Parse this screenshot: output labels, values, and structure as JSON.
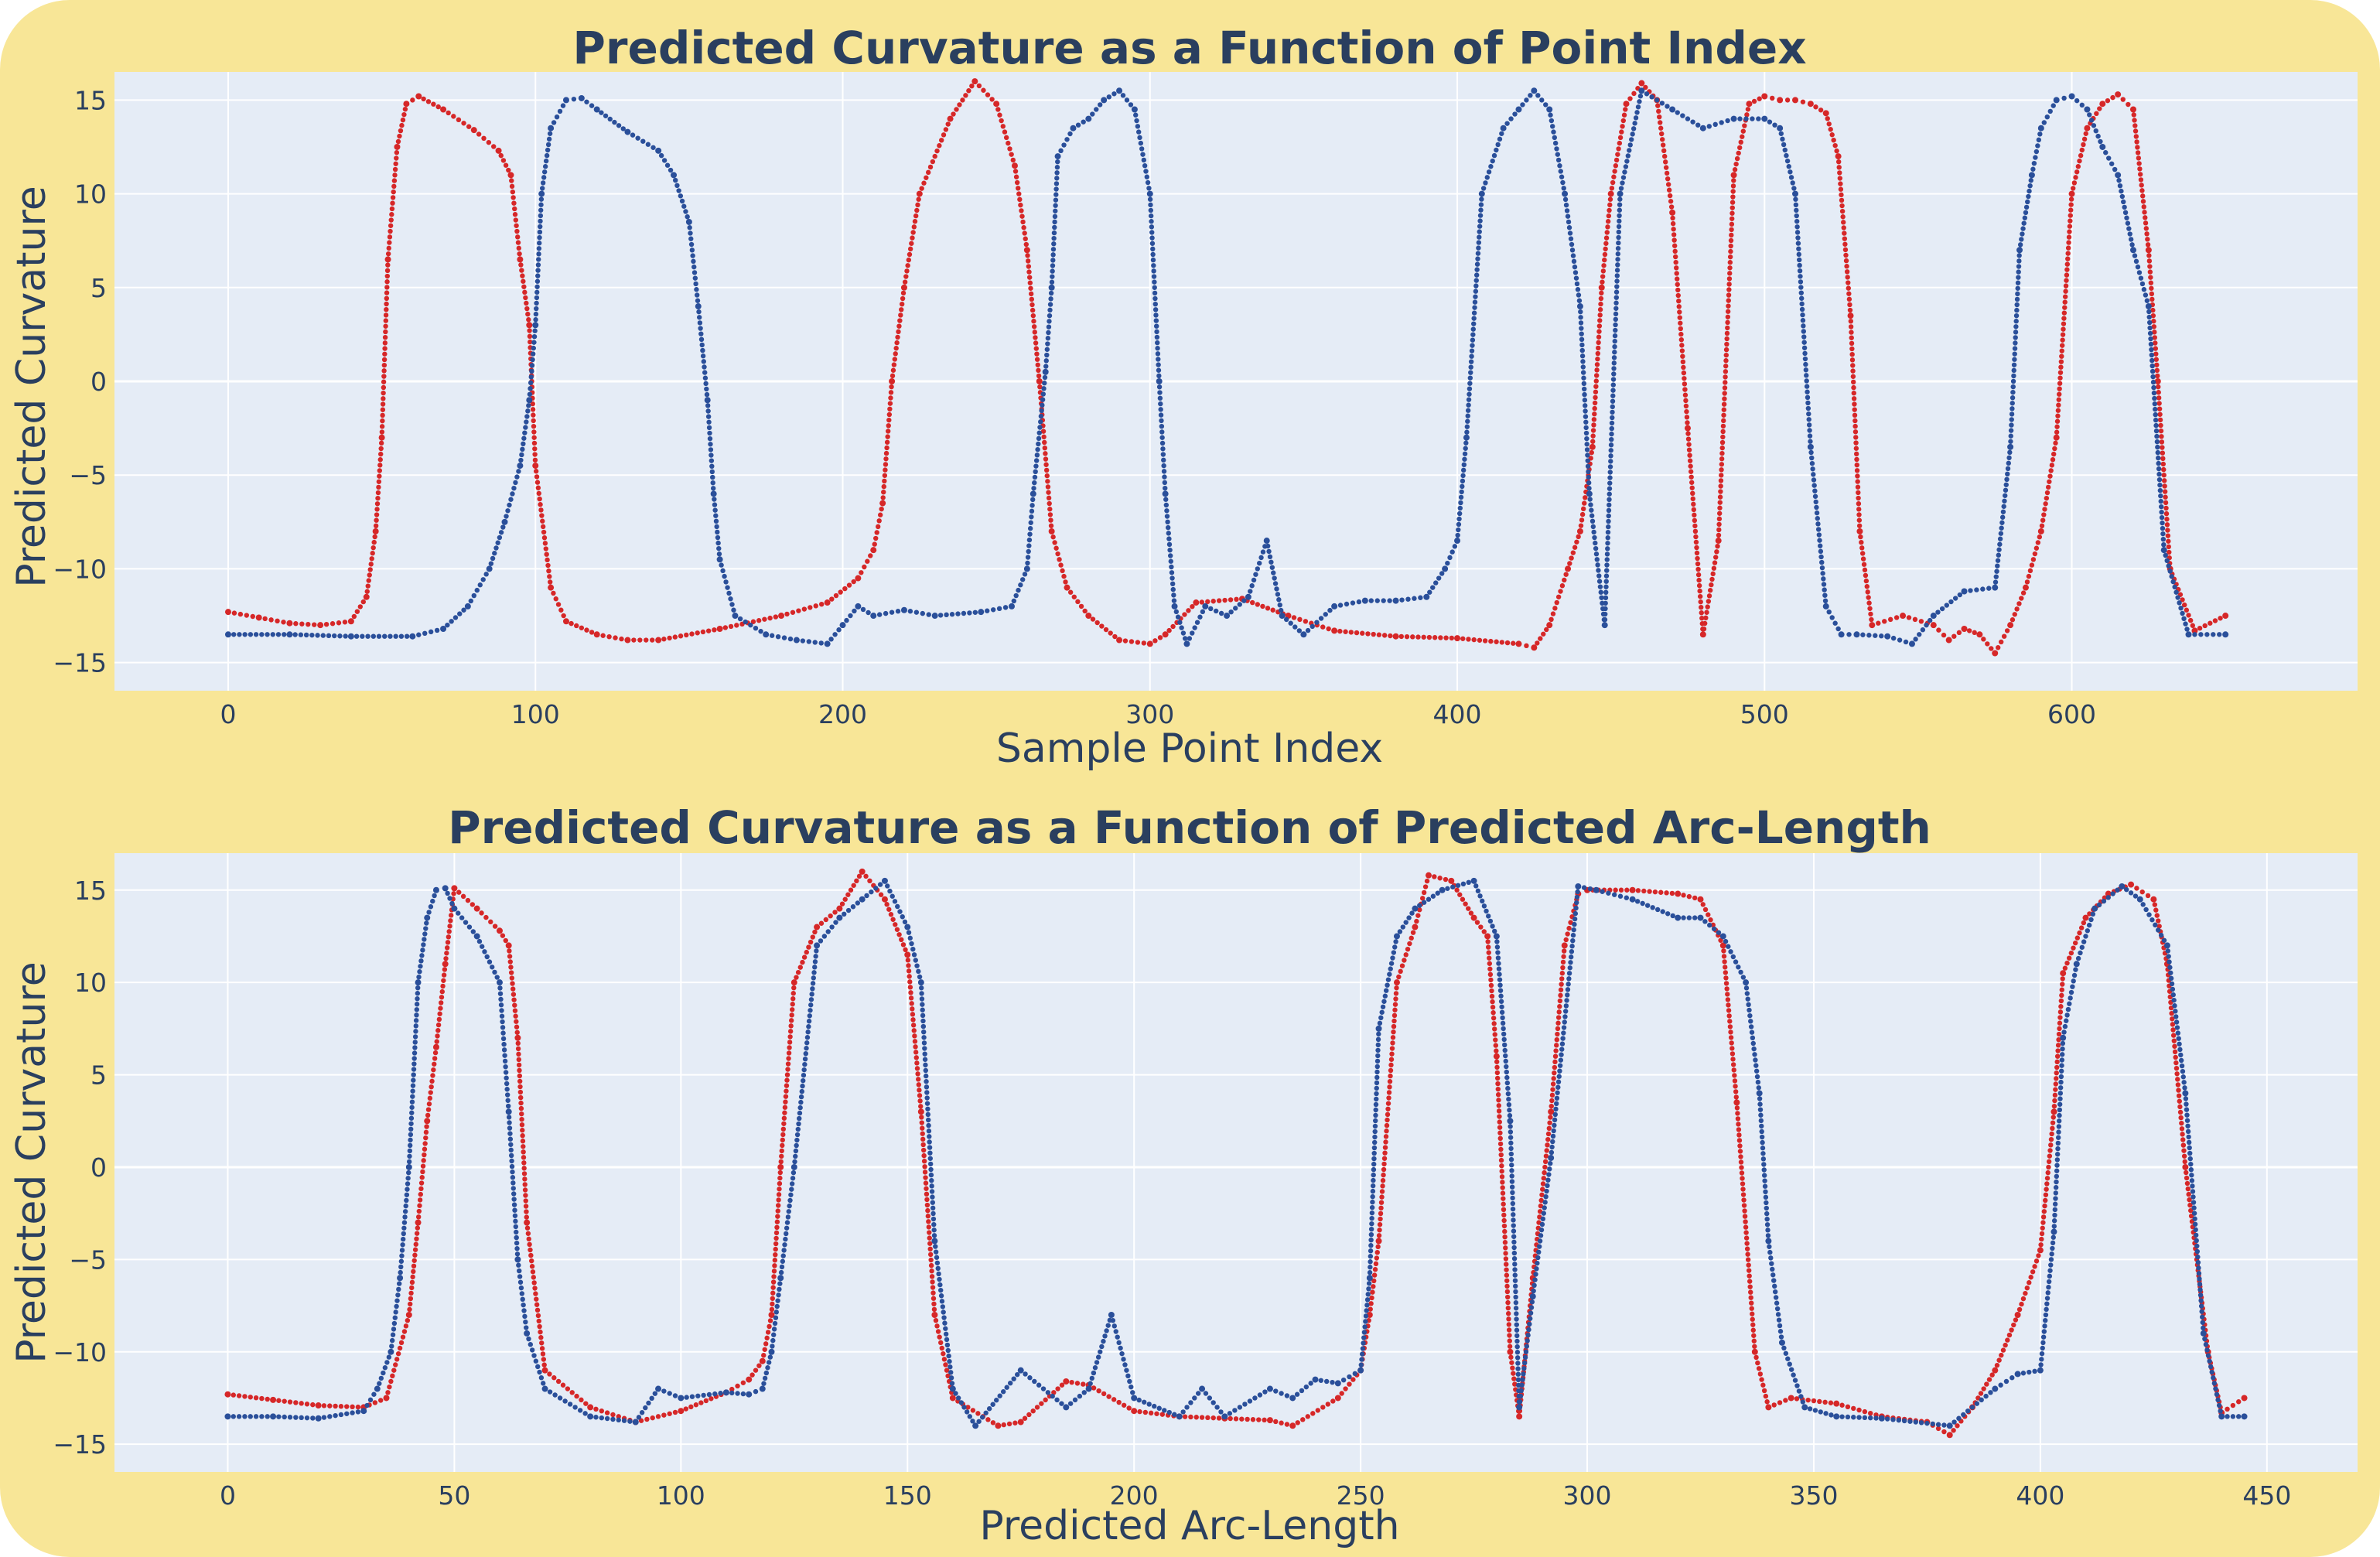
{
  "colors": {
    "background": "#f8e697",
    "plot_background": "#e5ecf6",
    "text": "#2a3f5f",
    "series_red": "#d62728",
    "series_blue": "#2a4f9a"
  },
  "chart_data": [
    {
      "type": "scatter",
      "title": "Predicted Curvature as a Function of Point Index",
      "xlabel": "Sample Point Index",
      "ylabel": "Predicted Curvature",
      "xlim": [
        -37,
        693
      ],
      "ylim": [
        -16.5,
        16.5
      ],
      "xticks": [
        0,
        100,
        200,
        300,
        400,
        500,
        600
      ],
      "yticks": [
        -15,
        -10,
        -5,
        0,
        5,
        10,
        15
      ],
      "grid": true,
      "legend": "none",
      "series": [
        {
          "color": "#d62728",
          "x": [
            0,
            10,
            20,
            30,
            40,
            45,
            48,
            50,
            52,
            55,
            58,
            62,
            70,
            80,
            88,
            92,
            95,
            98,
            100,
            105,
            110,
            120,
            130,
            140,
            160,
            180,
            195,
            205,
            210,
            213,
            216,
            220,
            225,
            235,
            243,
            250,
            256,
            260,
            264,
            268,
            273,
            280,
            290,
            300,
            305,
            315,
            330,
            345,
            360,
            380,
            400,
            420,
            425,
            430,
            436,
            440,
            444,
            447,
            450,
            455,
            460,
            465,
            470,
            475,
            480,
            485,
            490,
            495,
            500,
            505,
            510,
            515,
            520,
            524,
            528,
            531,
            535,
            545,
            555,
            560,
            565,
            570,
            575,
            580,
            585,
            590,
            595,
            600,
            605,
            610,
            615,
            620,
            625,
            628,
            632,
            640,
            650
          ],
          "y": [
            -12.3,
            -12.6,
            -12.9,
            -13.0,
            -12.8,
            -11.5,
            -8.0,
            -3.0,
            6.5,
            12.5,
            14.8,
            15.2,
            14.5,
            13.4,
            12.3,
            11.0,
            6.5,
            3.0,
            -4.5,
            -11.0,
            -12.8,
            -13.5,
            -13.8,
            -13.8,
            -13.2,
            -12.5,
            -11.8,
            -10.5,
            -9.0,
            -6.5,
            0.0,
            5.0,
            10.0,
            14.0,
            16.0,
            14.8,
            11.5,
            7.0,
            0.0,
            -8.0,
            -11.0,
            -12.5,
            -13.8,
            -14.0,
            -13.5,
            -11.8,
            -11.6,
            -12.5,
            -13.3,
            -13.6,
            -13.7,
            -14.0,
            -14.2,
            -13.0,
            -10.0,
            -8.0,
            -3.5,
            5.0,
            10.0,
            14.8,
            15.9,
            15.0,
            9.0,
            -2.5,
            -13.5,
            -8.5,
            11.0,
            14.8,
            15.2,
            15.0,
            15.0,
            14.8,
            14.3,
            12.0,
            3.5,
            -8.0,
            -13.0,
            -12.5,
            -13.0,
            -13.8,
            -13.2,
            -13.5,
            -14.5,
            -13.0,
            -11.0,
            -8.0,
            -3.0,
            10.0,
            13.5,
            14.8,
            15.3,
            14.5,
            7.0,
            0.0,
            -10.0,
            -13.3,
            -12.5
          ]
        },
        {
          "color": "#2a4f9a",
          "x": [
            0,
            20,
            40,
            60,
            70,
            78,
            85,
            90,
            95,
            98,
            100,
            102,
            105,
            110,
            115,
            120,
            130,
            140,
            145,
            150,
            153,
            156,
            158,
            160,
            165,
            175,
            185,
            195,
            200,
            205,
            210,
            220,
            230,
            245,
            255,
            260,
            262,
            266,
            268,
            270,
            275,
            280,
            285,
            290,
            295,
            300,
            303,
            305,
            308,
            312,
            318,
            325,
            332,
            338,
            343,
            350,
            360,
            370,
            380,
            390,
            396,
            400,
            403,
            408,
            415,
            420,
            425,
            430,
            435,
            440,
            443,
            448,
            453,
            460,
            470,
            480,
            490,
            500,
            505,
            510,
            515,
            520,
            525,
            530,
            540,
            548,
            555,
            565,
            575,
            580,
            583,
            587,
            590,
            595,
            600,
            605,
            610,
            615,
            620,
            625,
            630,
            638,
            650
          ],
          "y": [
            -13.5,
            -13.5,
            -13.6,
            -13.6,
            -13.2,
            -12.0,
            -10.0,
            -7.5,
            -4.5,
            -1.0,
            3.0,
            10.0,
            13.5,
            15.0,
            15.1,
            14.5,
            13.3,
            12.3,
            11.0,
            8.5,
            4.0,
            -1.0,
            -6.0,
            -9.5,
            -12.5,
            -13.5,
            -13.8,
            -14.0,
            -13.0,
            -12.0,
            -12.5,
            -12.2,
            -12.5,
            -12.3,
            -12.0,
            -10.0,
            -6.0,
            0.5,
            5.0,
            12.0,
            13.5,
            14.0,
            15.0,
            15.5,
            14.5,
            10.0,
            0.0,
            -6.0,
            -12.0,
            -14.0,
            -12.0,
            -12.5,
            -11.5,
            -8.5,
            -12.5,
            -13.5,
            -12.0,
            -11.7,
            -11.7,
            -11.5,
            -10.0,
            -8.5,
            -3.0,
            10.0,
            13.5,
            14.5,
            15.5,
            14.5,
            10.0,
            4.0,
            -6.0,
            -13.0,
            10.0,
            15.5,
            14.5,
            13.5,
            14.0,
            14.0,
            13.5,
            10.0,
            -3.5,
            -12.0,
            -13.5,
            -13.5,
            -13.6,
            -14.0,
            -12.5,
            -11.2,
            -11.0,
            -3.5,
            7.0,
            11.0,
            13.5,
            15.0,
            15.2,
            14.5,
            12.5,
            11.0,
            7.0,
            4.0,
            -9.0,
            -13.5,
            -13.5
          ]
        }
      ]
    },
    {
      "type": "scatter",
      "title": "Predicted Curvature as a Function of Predicted Arc-Length",
      "xlabel": "Predicted Arc-Length",
      "ylabel": "Predicted Curvature",
      "xlim": [
        -25,
        470
      ],
      "ylim": [
        -16.5,
        17
      ],
      "xticks": [
        0,
        50,
        100,
        150,
        200,
        250,
        300,
        350,
        400,
        450
      ],
      "yticks": [
        -15,
        -10,
        -5,
        0,
        5,
        10,
        15
      ],
      "grid": true,
      "legend": "none",
      "series": [
        {
          "color": "#d62728",
          "x": [
            0,
            10,
            20,
            30,
            35,
            40,
            42,
            44,
            46,
            48,
            50,
            55,
            60,
            62,
            64,
            66,
            70,
            80,
            90,
            100,
            110,
            115,
            118,
            120,
            122,
            125,
            130,
            135,
            140,
            145,
            150,
            153,
            156,
            160,
            170,
            175,
            185,
            190,
            200,
            210,
            220,
            230,
            235,
            245,
            250,
            252,
            254,
            258,
            262,
            265,
            270,
            275,
            278,
            280,
            283,
            285,
            288,
            292,
            295,
            298,
            300,
            310,
            320,
            325,
            330,
            333,
            337,
            340,
            345,
            355,
            365,
            375,
            380,
            385,
            390,
            395,
            400,
            403,
            405,
            410,
            415,
            420,
            425,
            428,
            432,
            437,
            440,
            445
          ],
          "y": [
            -12.3,
            -12.6,
            -12.9,
            -13.0,
            -12.5,
            -8.0,
            -3.0,
            2.5,
            6.5,
            11.0,
            15.1,
            14.0,
            12.8,
            12.0,
            7.0,
            -3.0,
            -11.0,
            -13.0,
            -13.8,
            -13.2,
            -12.2,
            -11.5,
            -10.5,
            -8.0,
            0.0,
            10.0,
            13.0,
            14.0,
            16.0,
            14.5,
            11.5,
            3.0,
            -8.0,
            -12.5,
            -14.0,
            -13.8,
            -11.6,
            -11.8,
            -13.2,
            -13.5,
            -13.6,
            -13.7,
            -14.0,
            -12.5,
            -11.0,
            -8.0,
            -4.0,
            10.0,
            13.0,
            15.8,
            15.5,
            13.5,
            12.5,
            6.0,
            -10.0,
            -13.5,
            -6.0,
            3.0,
            12.0,
            14.8,
            15.0,
            15.0,
            14.8,
            14.5,
            12.0,
            3.5,
            -10.0,
            -13.0,
            -12.5,
            -12.8,
            -13.5,
            -13.8,
            -14.5,
            -13.0,
            -11.0,
            -8.0,
            -4.5,
            3.0,
            10.5,
            13.5,
            14.8,
            15.3,
            14.5,
            11.0,
            0.0,
            -10.0,
            -13.3,
            -12.5
          ]
        },
        {
          "color": "#2a4f9a",
          "x": [
            0,
            10,
            20,
            30,
            33,
            36,
            38,
            40,
            42,
            44,
            46,
            48,
            50,
            55,
            60,
            62,
            64,
            66,
            70,
            80,
            90,
            95,
            100,
            110,
            115,
            118,
            120,
            122,
            125,
            130,
            135,
            140,
            145,
            150,
            153,
            156,
            160,
            165,
            175,
            185,
            190,
            195,
            200,
            210,
            215,
            220,
            230,
            235,
            240,
            245,
            250,
            252,
            254,
            258,
            262,
            268,
            275,
            280,
            283,
            285,
            288,
            292,
            298,
            302,
            310,
            320,
            325,
            330,
            335,
            338,
            340,
            343,
            348,
            355,
            365,
            380,
            390,
            395,
            400,
            403,
            405,
            408,
            412,
            418,
            422,
            428,
            432,
            436,
            440,
            445
          ],
          "y": [
            -13.5,
            -13.5,
            -13.6,
            -13.2,
            -12.0,
            -10.0,
            -6.0,
            0.0,
            10.0,
            13.5,
            15.0,
            15.1,
            14.0,
            12.5,
            10.0,
            3.0,
            -5.0,
            -9.0,
            -12.0,
            -13.5,
            -13.8,
            -12.0,
            -12.5,
            -12.2,
            -12.3,
            -12.0,
            -10.0,
            -6.0,
            0.0,
            12.0,
            13.5,
            14.5,
            15.5,
            13.0,
            10.0,
            -4.0,
            -12.0,
            -14.0,
            -11.0,
            -13.0,
            -12.0,
            -8.0,
            -12.5,
            -13.5,
            -12.0,
            -13.5,
            -12.0,
            -12.5,
            -11.5,
            -11.7,
            -11.0,
            -6.0,
            7.5,
            12.5,
            14.0,
            15.0,
            15.5,
            12.5,
            2.5,
            -13.0,
            -7.0,
            0.5,
            15.2,
            15.0,
            14.5,
            13.5,
            13.5,
            12.5,
            10.0,
            4.0,
            -4.0,
            -9.5,
            -13.0,
            -13.5,
            -13.6,
            -14.0,
            -12.0,
            -11.2,
            -11.0,
            -3.5,
            7.0,
            11.0,
            14.0,
            15.2,
            14.5,
            12.0,
            4.0,
            -9.0,
            -13.5,
            -13.5
          ]
        }
      ]
    }
  ]
}
